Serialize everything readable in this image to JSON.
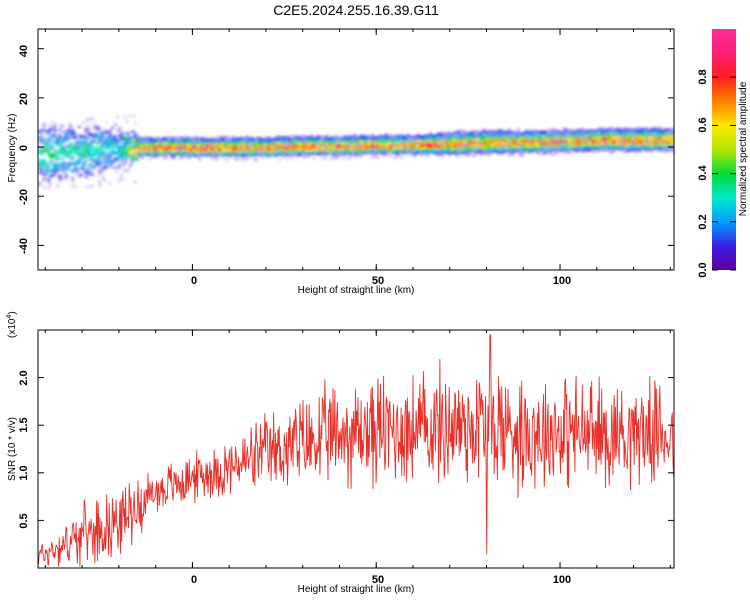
{
  "title": "C2E5.2024.255.16.39.G11",
  "top_panel": {
    "xlabel": "Height of straight line (km)",
    "ylabel": "Frequency (Hz)",
    "xticks": [
      "0",
      "50",
      "100"
    ],
    "yticks": [
      "40",
      "20",
      "0",
      "-20",
      "-40"
    ]
  },
  "bottom_panel": {
    "xlabel": "Height of straight line (km)",
    "ylabel": "SNR (10 * v/v)",
    "multiplier_base": "(x10",
    "multiplier_exp": "4",
    "multiplier_close": ")",
    "xticks": [
      "0",
      "50",
      "100"
    ],
    "yticks": [
      "0.5",
      "1.0",
      "1.5",
      "2.0"
    ]
  },
  "colorbar": {
    "label": "Normalized spectral amplitude",
    "ticks": [
      "0.0",
      "0.2",
      "0.4",
      "0.6",
      "0.8"
    ]
  },
  "colors": {
    "snr_line": "#e8302a",
    "colormap": [
      "#5a00a0",
      "#3c1ee6",
      "#00a0ff",
      "#00e6c8",
      "#00dc32",
      "#b4e600",
      "#ffe600",
      "#ff8200",
      "#ff1e1e",
      "#ff1e78",
      "#ff2d96"
    ]
  },
  "chart_data": [
    {
      "type": "heatmap",
      "title": "C2E5.2024.255.16.39.G11",
      "xlabel": "Height of straight line (km)",
      "ylabel": "Frequency (Hz)",
      "xlim": [
        -42,
        131
      ],
      "ylim": [
        -50,
        48
      ],
      "colorbar_label": "Normalized spectral amplitude",
      "colorbar_range": [
        0,
        1
      ],
      "ridge": {
        "x": [
          -40,
          -35,
          -30,
          -25,
          -20,
          -15,
          -10,
          0,
          10,
          20,
          30,
          40,
          50,
          60,
          70,
          80,
          90,
          100,
          110,
          120,
          130
        ],
        "frequency": [
          -3,
          -2,
          -2,
          -1,
          -1,
          0,
          0,
          0,
          0,
          0,
          0.5,
          0.5,
          1,
          1,
          1.5,
          2,
          2,
          2.5,
          3,
          3,
          3
        ],
        "half_width": [
          9,
          8,
          7,
          6,
          5,
          2.5,
          2.5,
          2.5,
          2.5,
          2.5,
          2.5,
          2.5,
          2.5,
          2.5,
          3,
          3,
          3,
          3,
          3,
          3,
          3
        ],
        "peak_amplitude": [
          0.45,
          0.45,
          0.45,
          0.4,
          0.4,
          0.85,
          0.95,
          0.95,
          0.95,
          0.95,
          0.95,
          0.95,
          0.95,
          0.95,
          0.9,
          0.9,
          0.9,
          0.9,
          0.9,
          0.95,
          0.95
        ]
      }
    },
    {
      "type": "line",
      "title": "C2E5.2024.255.16.39.G11",
      "xlabel": "Height of straight line (km)",
      "ylabel": "SNR (10 * v/v)",
      "y_multiplier": 10000,
      "xlim": [
        -42,
        131
      ],
      "ylim": [
        0,
        2.5
      ],
      "x": [
        -40,
        -30,
        -20,
        -10,
        0,
        10,
        20,
        30,
        40,
        50,
        60,
        70,
        80,
        90,
        100,
        110,
        120,
        130
      ],
      "y_mean": [
        0.15,
        0.35,
        0.5,
        0.8,
        0.95,
        1.05,
        1.2,
        1.3,
        1.4,
        1.45,
        1.45,
        1.5,
        1.5,
        1.45,
        1.45,
        1.4,
        1.45,
        1.4
      ],
      "y_amplitude": [
        0.15,
        0.3,
        0.35,
        0.25,
        0.25,
        0.3,
        0.4,
        0.5,
        0.55,
        0.6,
        0.6,
        0.65,
        0.7,
        0.65,
        0.6,
        0.6,
        0.55,
        0.5
      ],
      "peaks": [
        {
          "x": 81,
          "y": 2.45
        }
      ],
      "troughs": [
        {
          "x": 80,
          "y": 0.15
        }
      ]
    }
  ]
}
